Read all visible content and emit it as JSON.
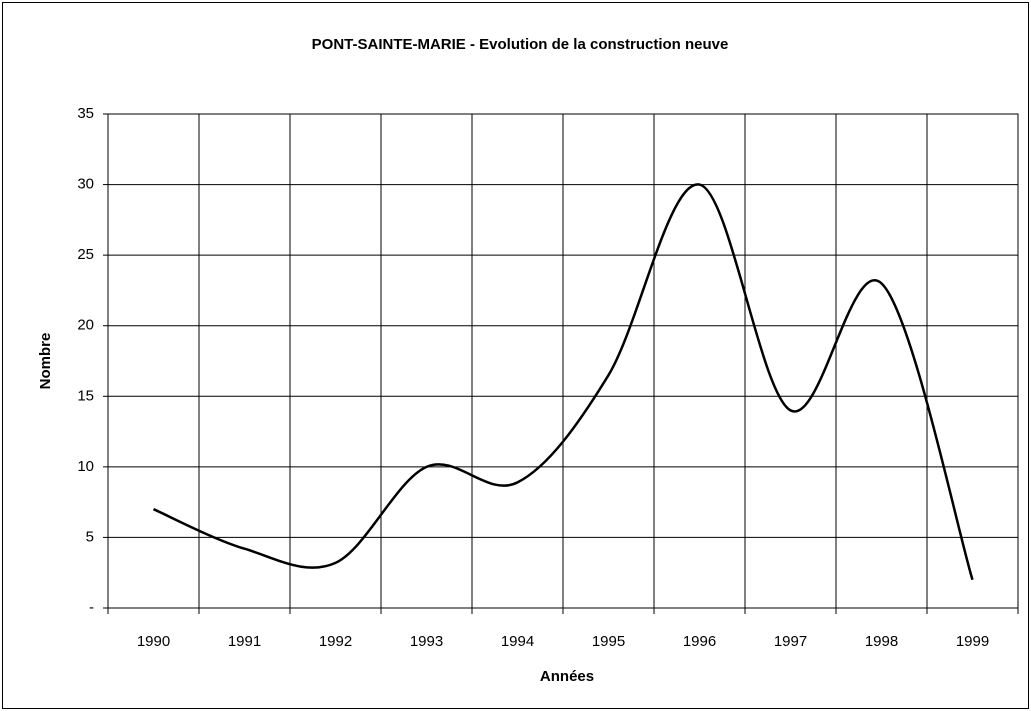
{
  "chart_data": {
    "type": "line",
    "title": "PONT-SAINTE-MARIE - Evolution de la construction neuve",
    "x_label": "Années",
    "y_label": "Nombre",
    "categories": [
      "1990",
      "1991",
      "1992",
      "1993",
      "1994",
      "1995",
      "1996",
      "1997",
      "1998",
      "1999"
    ],
    "series": [
      {
        "name": "Nombre",
        "color": "#000000",
        "values": [
          7,
          4.2,
          3.2,
          10,
          8.9,
          16.5,
          30,
          14,
          23,
          2
        ]
      }
    ],
    "ylim": [
      0,
      35
    ],
    "yticks": [
      {
        "value": 0,
        "label": "-"
      },
      5,
      10,
      15,
      20,
      25,
      30,
      35
    ],
    "grid": true,
    "smooth": true
  }
}
